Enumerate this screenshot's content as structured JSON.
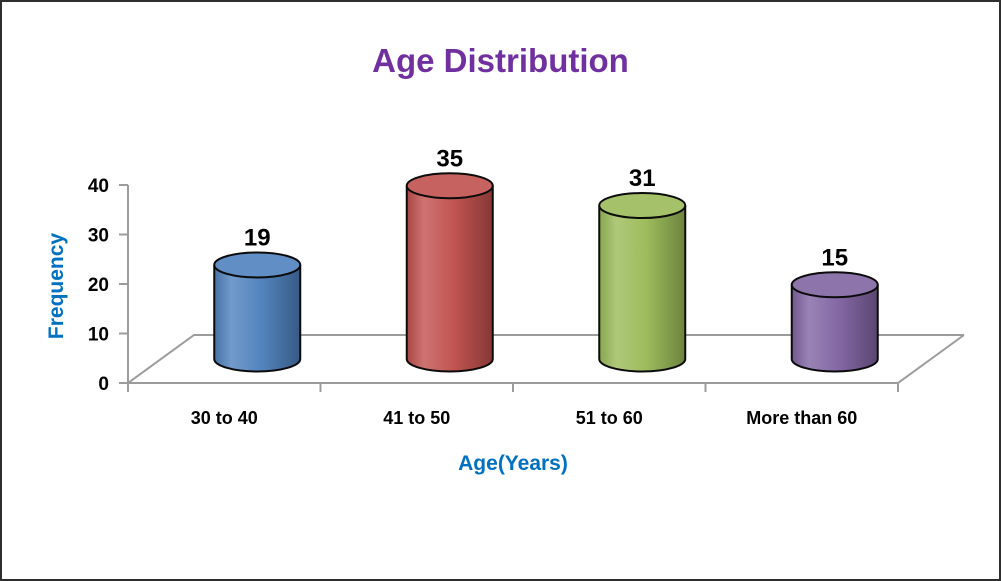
{
  "chart_data": {
    "type": "bar",
    "variant": "3d-cylinder",
    "title": "Age Distribution",
    "categories": [
      "30 to 40",
      "41 to 50",
      "51 to 60",
      "More than 60"
    ],
    "values": [
      19,
      35,
      31,
      15
    ],
    "xlabel": "Age(Years)",
    "ylabel": "Frequency",
    "ylim": [
      0,
      40
    ],
    "yticks": [
      0,
      10,
      20,
      30,
      40
    ],
    "show_data_labels": true,
    "legend": "none",
    "gridlines": false,
    "bar_colors": [
      "#4F81BD",
      "#C0504D",
      "#9BBB59",
      "#8064A2"
    ],
    "title_color": "#7030A0",
    "axis_label_color": "#0070C0",
    "tick_label_color": "#000000",
    "data_label_color": "#000000",
    "axis_line_color": "#9C9C9C",
    "outline_color": "#0B0B0B",
    "background": "#FFFFFF",
    "border_color": "#2E2E2E"
  }
}
